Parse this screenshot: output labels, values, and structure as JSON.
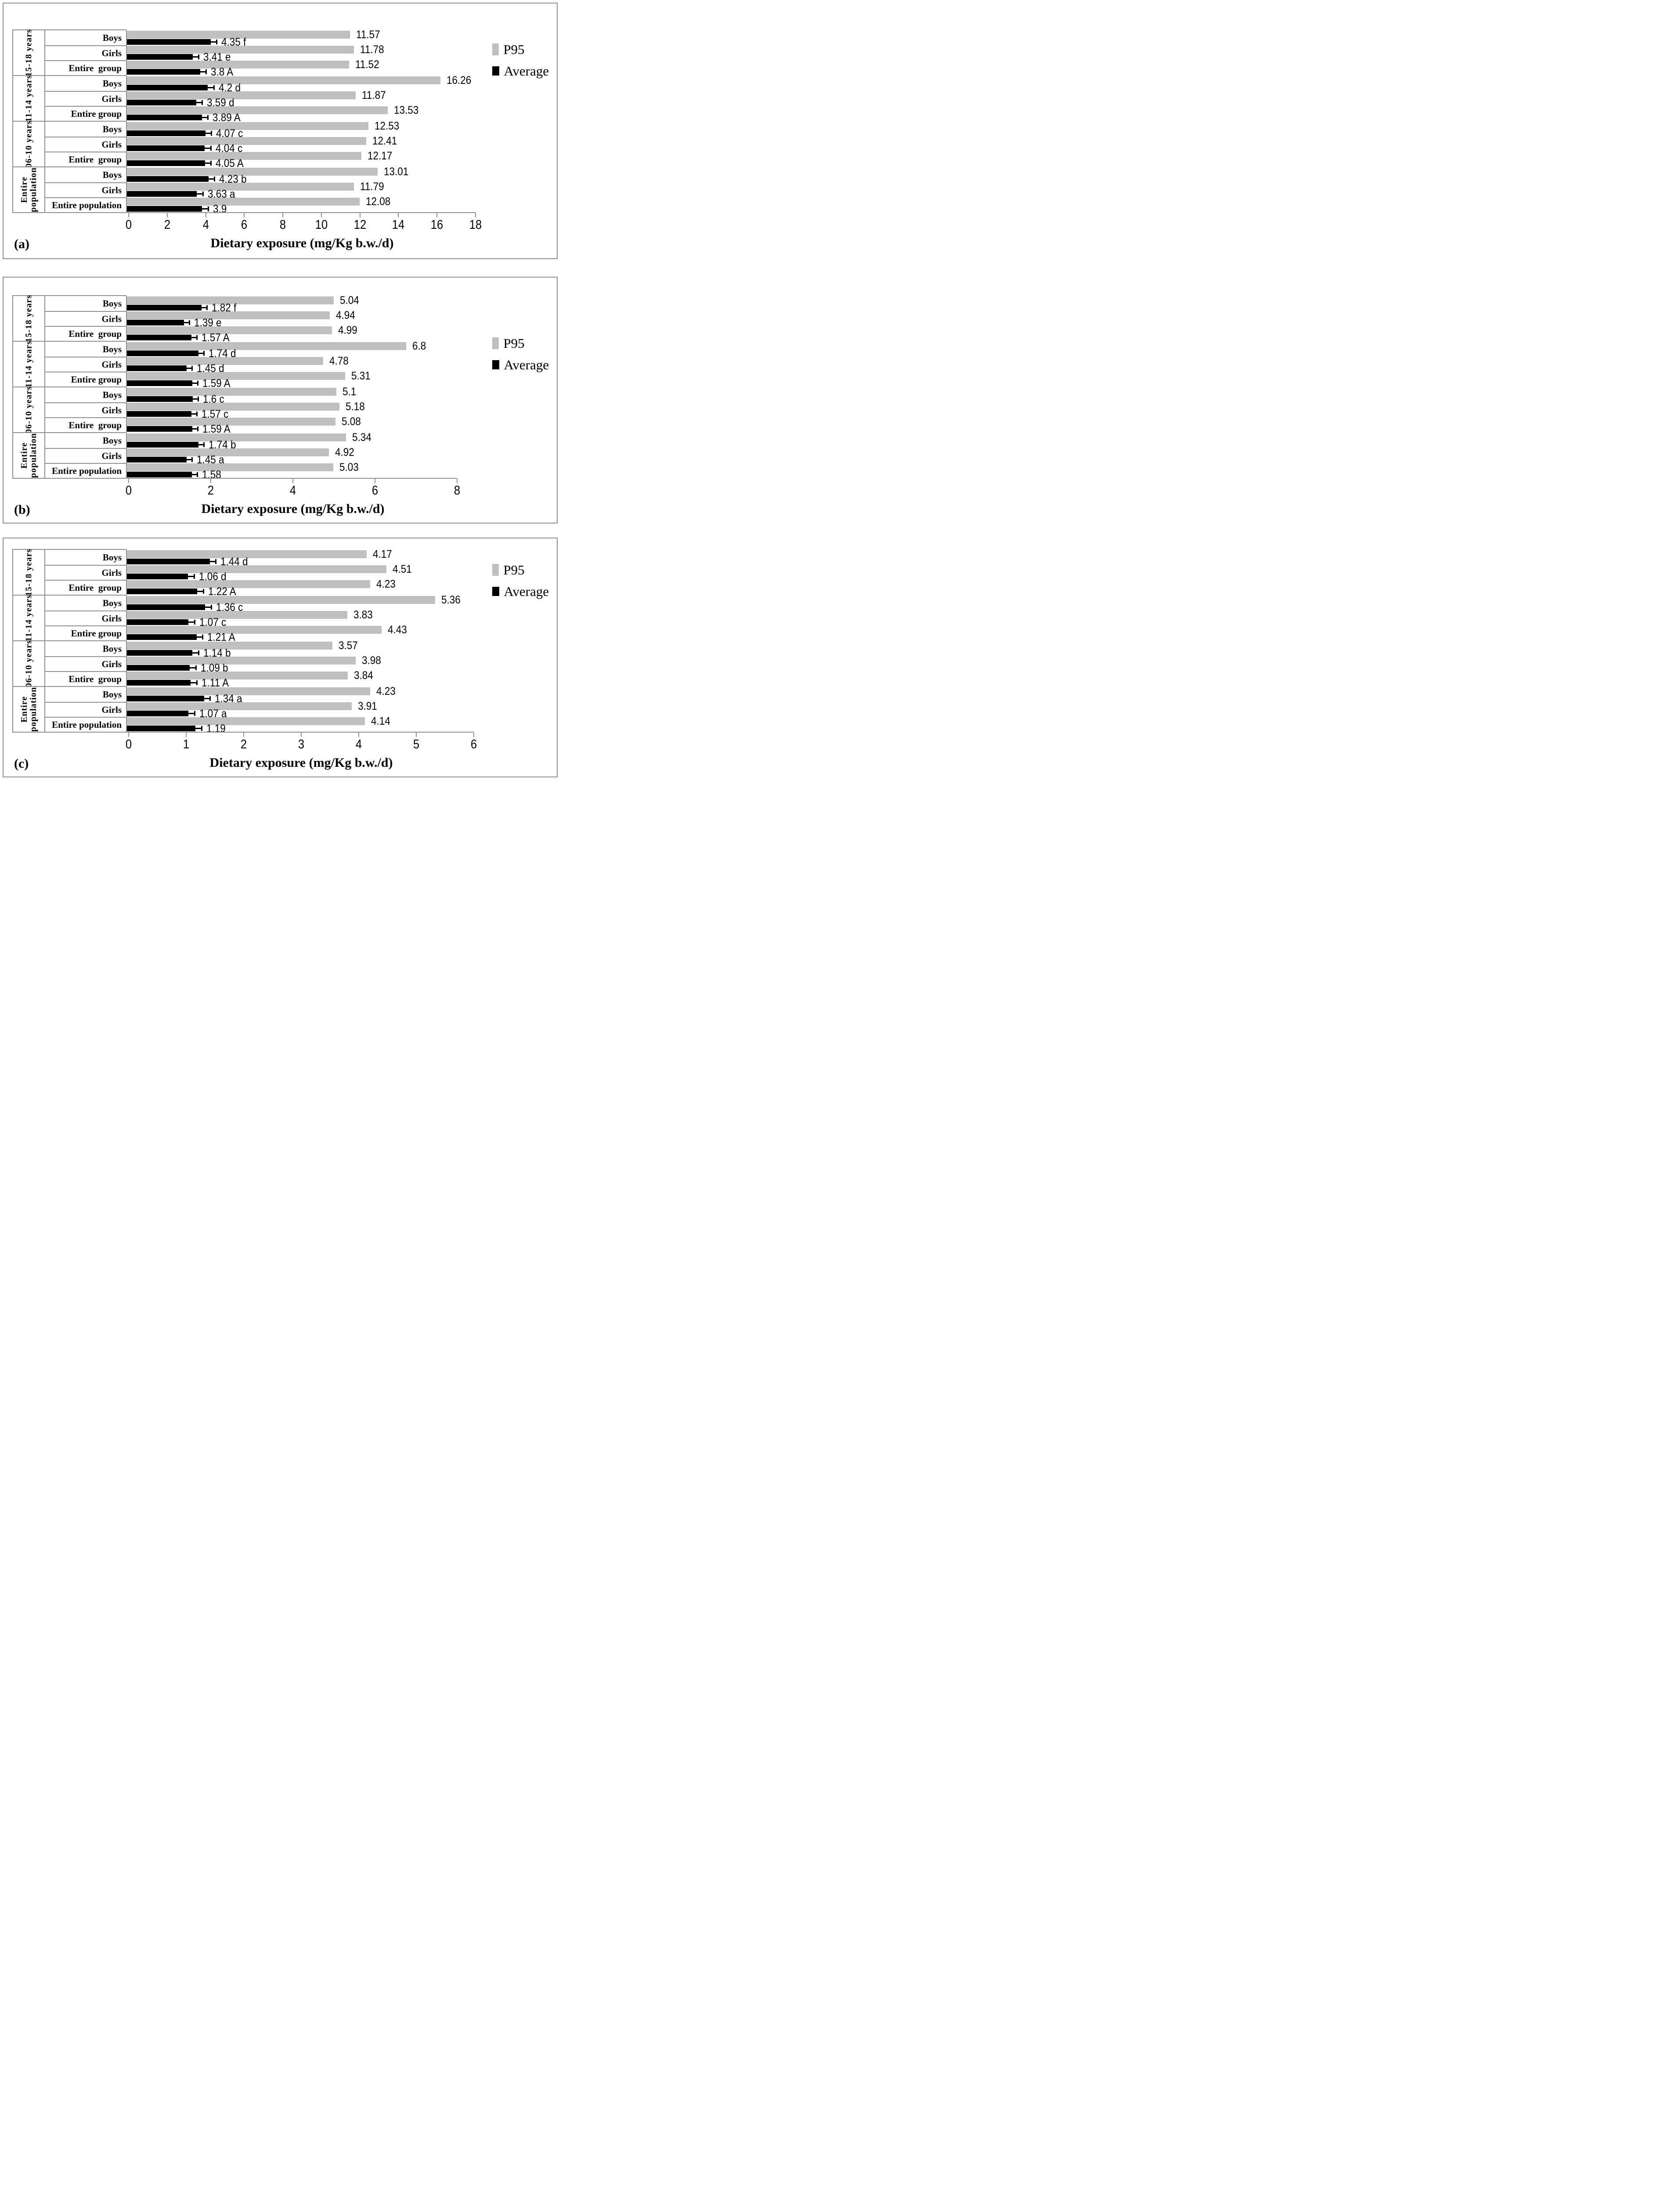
{
  "chart_data": [
    {
      "id": "a",
      "type": "bar",
      "orientation": "horizontal",
      "panel_label": "(a)",
      "xlabel": "Dietary exposure (mg/Kg b.w./d)",
      "xlim": [
        0,
        18
      ],
      "xticks": [
        0,
        2,
        4,
        6,
        8,
        10,
        12,
        14,
        16,
        18
      ],
      "legend": [
        "P95",
        "Average"
      ],
      "legend_position": "right",
      "colors": {
        "p95": "#bfbfbf",
        "average": "#000000"
      },
      "error_bar_halfwidth": 0.35,
      "groups": [
        {
          "label_lines": [
            "15-18 years"
          ],
          "rows": [
            {
              "category": "Boys",
              "average": 4.35,
              "average_label": "4.35 f",
              "p95": 11.57,
              "p95_label": "11.57"
            },
            {
              "category": "Girls",
              "average": 3.41,
              "average_label": "3.41 e",
              "p95": 11.78,
              "p95_label": "11.78"
            },
            {
              "category": "Entire  group",
              "average": 3.8,
              "average_label": "3.8 A",
              "p95": 11.52,
              "p95_label": "11.52"
            }
          ]
        },
        {
          "label_lines": [
            "11-14 years"
          ],
          "rows": [
            {
              "category": "Boys",
              "average": 4.2,
              "average_label": "4.2 d",
              "p95": 16.26,
              "p95_label": "16.26"
            },
            {
              "category": "Girls",
              "average": 3.59,
              "average_label": "3.59 d",
              "p95": 11.87,
              "p95_label": "11.87"
            },
            {
              "category": "Entire group",
              "average": 3.89,
              "average_label": "3.89 A",
              "p95": 13.53,
              "p95_label": "13.53"
            }
          ]
        },
        {
          "label_lines": [
            "06-10 years"
          ],
          "rows": [
            {
              "category": "Boys",
              "average": 4.07,
              "average_label": "4.07 c",
              "p95": 12.53,
              "p95_label": "12.53"
            },
            {
              "category": "Girls",
              "average": 4.04,
              "average_label": "4.04 c",
              "p95": 12.41,
              "p95_label": "12.41"
            },
            {
              "category": "Entire  group",
              "average": 4.05,
              "average_label": "4.05 A",
              "p95": 12.17,
              "p95_label": "12.17"
            }
          ]
        },
        {
          "label_lines": [
            "Entire",
            "population"
          ],
          "rows": [
            {
              "category": "Boys",
              "average": 4.23,
              "average_label": "4.23 b",
              "p95": 13.01,
              "p95_label": "13.01"
            },
            {
              "category": "Girls",
              "average": 3.63,
              "average_label": "3.63 a",
              "p95": 11.79,
              "p95_label": "11.79"
            },
            {
              "category": "Entire population",
              "average": 3.9,
              "average_label": "3.9",
              "p95": 12.08,
              "p95_label": "12.08"
            }
          ]
        }
      ]
    },
    {
      "id": "b",
      "type": "bar",
      "orientation": "horizontal",
      "panel_label": "(b)",
      "xlabel": "Dietary exposure (mg/Kg b.w./d)",
      "xlim": [
        0,
        8
      ],
      "xticks": [
        0,
        2,
        4,
        6,
        8
      ],
      "legend": [
        "P95",
        "Average"
      ],
      "legend_position": "right",
      "colors": {
        "p95": "#bfbfbf",
        "average": "#000000"
      },
      "error_bar_halfwidth": 0.15,
      "groups": [
        {
          "label_lines": [
            "15-18 years"
          ],
          "rows": [
            {
              "category": "Boys",
              "average": 1.82,
              "average_label": "1.82 f",
              "p95": 5.04,
              "p95_label": "5.04"
            },
            {
              "category": "Girls",
              "average": 1.39,
              "average_label": "1.39 e",
              "p95": 4.94,
              "p95_label": "4.94"
            },
            {
              "category": "Entire  group",
              "average": 1.57,
              "average_label": "1.57 A",
              "p95": 4.99,
              "p95_label": "4.99"
            }
          ]
        },
        {
          "label_lines": [
            "11-14 years"
          ],
          "rows": [
            {
              "category": "Boys",
              "average": 1.74,
              "average_label": "1.74 d",
              "p95": 6.8,
              "p95_label": "6.8"
            },
            {
              "category": "Girls",
              "average": 1.45,
              "average_label": "1.45 d",
              "p95": 4.78,
              "p95_label": "4.78"
            },
            {
              "category": "Entire group",
              "average": 1.59,
              "average_label": "1.59 A",
              "p95": 5.31,
              "p95_label": "5.31"
            }
          ]
        },
        {
          "label_lines": [
            "06-10 years"
          ],
          "rows": [
            {
              "category": "Boys",
              "average": 1.6,
              "average_label": "1.6 c",
              "p95": 5.1,
              "p95_label": "5.1"
            },
            {
              "category": "Girls",
              "average": 1.57,
              "average_label": "1.57 c",
              "p95": 5.18,
              "p95_label": "5.18"
            },
            {
              "category": "Entire  group",
              "average": 1.59,
              "average_label": "1.59 A",
              "p95": 5.08,
              "p95_label": "5.08"
            }
          ]
        },
        {
          "label_lines": [
            "Entire",
            "population"
          ],
          "rows": [
            {
              "category": "Boys",
              "average": 1.74,
              "average_label": "1.74 b",
              "p95": 5.34,
              "p95_label": "5.34"
            },
            {
              "category": "Girls",
              "average": 1.45,
              "average_label": "1.45 a",
              "p95": 4.92,
              "p95_label": "4.92"
            },
            {
              "category": "Entire population",
              "average": 1.58,
              "average_label": "1.58",
              "p95": 5.03,
              "p95_label": "5.03"
            }
          ]
        }
      ]
    },
    {
      "id": "c",
      "type": "bar",
      "orientation": "horizontal",
      "panel_label": "(c)",
      "xlabel": "Dietary exposure (mg/Kg b.w./d)",
      "xlim": [
        0,
        6
      ],
      "xticks": [
        0,
        1,
        2,
        3,
        4,
        5,
        6
      ],
      "legend": [
        "P95",
        "Average"
      ],
      "legend_position": "right",
      "colors": {
        "p95": "#bfbfbf",
        "average": "#000000"
      },
      "error_bar_halfwidth": 0.12,
      "groups": [
        {
          "label_lines": [
            "15-18 years"
          ],
          "rows": [
            {
              "category": "Boys",
              "average": 1.44,
              "average_label": "1.44 d",
              "p95": 4.17,
              "p95_label": "4.17"
            },
            {
              "category": "Girls",
              "average": 1.06,
              "average_label": "1.06 d",
              "p95": 4.51,
              "p95_label": "4.51"
            },
            {
              "category": "Entire  group",
              "average": 1.22,
              "average_label": "1.22 A",
              "p95": 4.23,
              "p95_label": "4.23"
            }
          ]
        },
        {
          "label_lines": [
            "11-14 years"
          ],
          "rows": [
            {
              "category": "Boys",
              "average": 1.36,
              "average_label": "1.36 c",
              "p95": 5.36,
              "p95_label": "5.36"
            },
            {
              "category": "Girls",
              "average": 1.07,
              "average_label": "1.07 c",
              "p95": 3.83,
              "p95_label": "3.83"
            },
            {
              "category": "Entire group",
              "average": 1.21,
              "average_label": "1.21 A",
              "p95": 4.43,
              "p95_label": "4.43"
            }
          ]
        },
        {
          "label_lines": [
            "06-10 years"
          ],
          "rows": [
            {
              "category": "Boys",
              "average": 1.14,
              "average_label": "1.14 b",
              "p95": 3.57,
              "p95_label": "3.57"
            },
            {
              "category": "Girls",
              "average": 1.09,
              "average_label": "1.09 b",
              "p95": 3.98,
              "p95_label": "3.98"
            },
            {
              "category": "Entire  group",
              "average": 1.11,
              "average_label": "1.11 A",
              "p95": 3.84,
              "p95_label": "3.84"
            }
          ]
        },
        {
          "label_lines": [
            "Entire",
            "population"
          ],
          "rows": [
            {
              "category": "Boys",
              "average": 1.34,
              "average_label": "1.34 a",
              "p95": 4.23,
              "p95_label": "4.23"
            },
            {
              "category": "Girls",
              "average": 1.07,
              "average_label": "1.07 a",
              "p95": 3.91,
              "p95_label": "3.91"
            },
            {
              "category": "Entire population",
              "average": 1.19,
              "average_label": "1.19",
              "p95": 4.14,
              "p95_label": "4.14"
            }
          ]
        }
      ]
    }
  ]
}
